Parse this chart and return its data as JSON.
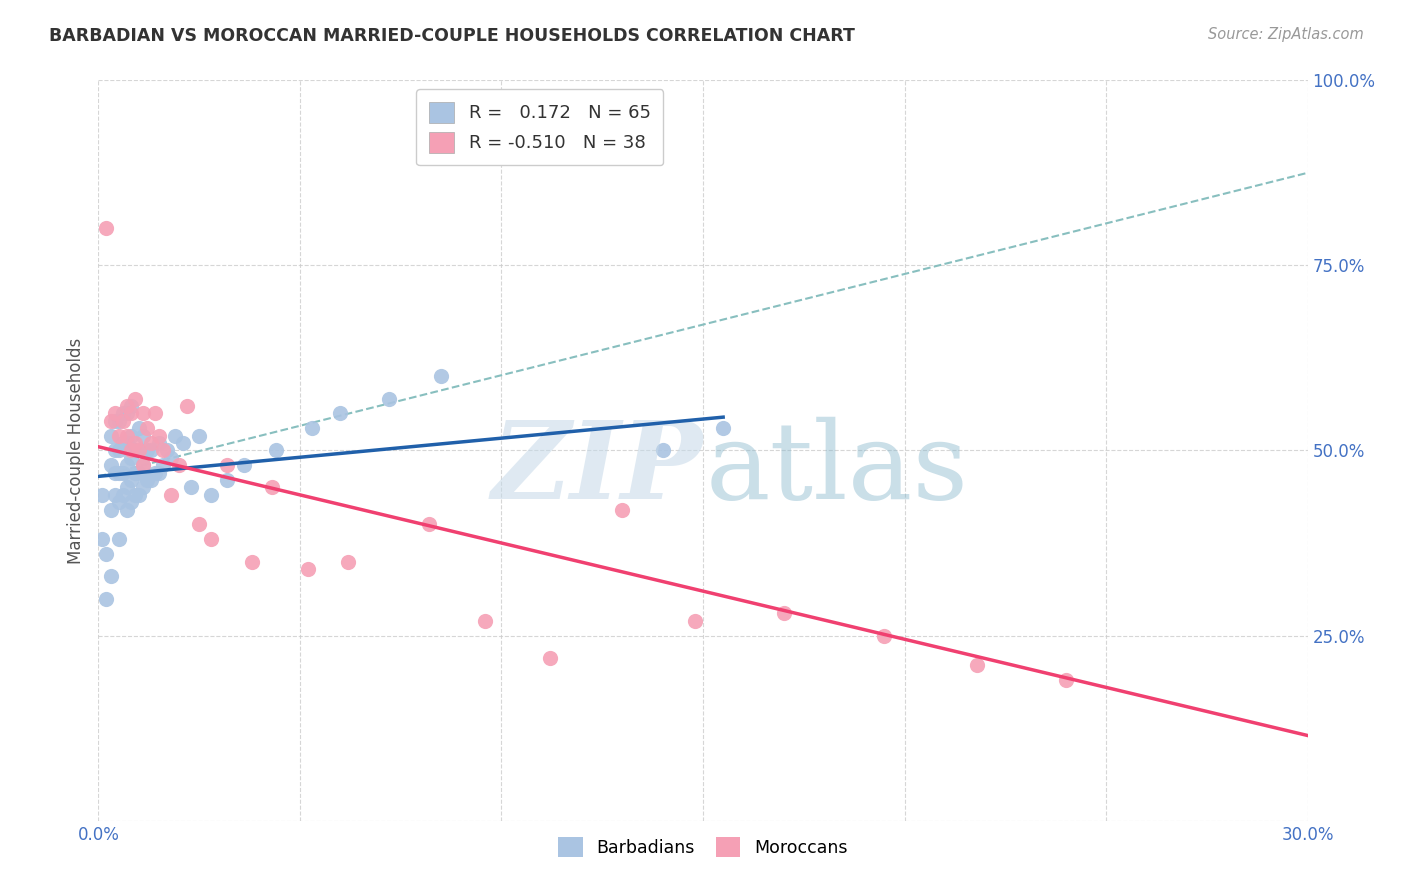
{
  "title": "BARBADIAN VS MOROCCAN MARRIED-COUPLE HOUSEHOLDS CORRELATION CHART",
  "source": "Source: ZipAtlas.com",
  "ylabel": "Married-couple Households",
  "x_ticks": [
    0.0,
    0.05,
    0.1,
    0.15,
    0.2,
    0.25,
    0.3
  ],
  "x_tick_labels": [
    "0.0%",
    "",
    "",
    "",
    "",
    "",
    "30.0%"
  ],
  "y_ticks": [
    0.0,
    0.25,
    0.5,
    0.75,
    1.0
  ],
  "y_tick_labels": [
    "",
    "25.0%",
    "50.0%",
    "75.0%",
    "100.0%"
  ],
  "xlim": [
    0.0,
    0.3
  ],
  "ylim": [
    0.0,
    1.0
  ],
  "barbadian_color": "#aac4e2",
  "moroccan_color": "#f5a0b5",
  "barbadian_line_color": "#2060aa",
  "moroccan_line_color": "#f04070",
  "dashed_line_color": "#88bfbf",
  "R_barbadian": 0.172,
  "N_barbadian": 65,
  "R_moroccan": -0.51,
  "N_moroccan": 38,
  "barbadian_x": [
    0.001,
    0.001,
    0.002,
    0.002,
    0.003,
    0.003,
    0.003,
    0.003,
    0.004,
    0.004,
    0.004,
    0.004,
    0.005,
    0.005,
    0.005,
    0.005,
    0.005,
    0.006,
    0.006,
    0.006,
    0.006,
    0.007,
    0.007,
    0.007,
    0.007,
    0.007,
    0.008,
    0.008,
    0.008,
    0.008,
    0.008,
    0.009,
    0.009,
    0.009,
    0.01,
    0.01,
    0.01,
    0.01,
    0.011,
    0.011,
    0.011,
    0.012,
    0.012,
    0.013,
    0.013,
    0.014,
    0.015,
    0.015,
    0.016,
    0.017,
    0.018,
    0.019,
    0.021,
    0.023,
    0.025,
    0.028,
    0.032,
    0.036,
    0.044,
    0.053,
    0.06,
    0.072,
    0.085,
    0.14,
    0.155
  ],
  "barbadian_y": [
    0.44,
    0.38,
    0.3,
    0.36,
    0.33,
    0.42,
    0.48,
    0.52,
    0.44,
    0.47,
    0.5,
    0.54,
    0.38,
    0.43,
    0.47,
    0.5,
    0.54,
    0.44,
    0.47,
    0.51,
    0.55,
    0.42,
    0.45,
    0.48,
    0.51,
    0.55,
    0.43,
    0.46,
    0.49,
    0.52,
    0.56,
    0.44,
    0.47,
    0.5,
    0.44,
    0.47,
    0.5,
    0.53,
    0.45,
    0.48,
    0.52,
    0.46,
    0.5,
    0.46,
    0.5,
    0.47,
    0.47,
    0.51,
    0.48,
    0.5,
    0.49,
    0.52,
    0.51,
    0.45,
    0.52,
    0.44,
    0.46,
    0.48,
    0.5,
    0.53,
    0.55,
    0.57,
    0.6,
    0.5,
    0.53
  ],
  "moroccan_x": [
    0.002,
    0.003,
    0.004,
    0.005,
    0.006,
    0.007,
    0.007,
    0.008,
    0.008,
    0.009,
    0.009,
    0.01,
    0.011,
    0.011,
    0.012,
    0.013,
    0.014,
    0.015,
    0.016,
    0.018,
    0.02,
    0.022,
    0.025,
    0.028,
    0.032,
    0.038,
    0.043,
    0.052,
    0.062,
    0.082,
    0.096,
    0.112,
    0.13,
    0.148,
    0.17,
    0.195,
    0.218,
    0.24
  ],
  "moroccan_y": [
    0.8,
    0.54,
    0.55,
    0.52,
    0.54,
    0.52,
    0.56,
    0.5,
    0.55,
    0.51,
    0.57,
    0.5,
    0.55,
    0.48,
    0.53,
    0.51,
    0.55,
    0.52,
    0.5,
    0.44,
    0.48,
    0.56,
    0.4,
    0.38,
    0.48,
    0.35,
    0.45,
    0.34,
    0.35,
    0.4,
    0.27,
    0.22,
    0.42,
    0.27,
    0.28,
    0.25,
    0.21,
    0.19
  ],
  "barbadian_line_x0": 0.0,
  "barbadian_line_x1": 0.155,
  "barbadian_line_y0": 0.465,
  "barbadian_line_y1": 0.545,
  "moroccan_line_x0": 0.0,
  "moroccan_line_x1": 0.3,
  "moroccan_line_y0": 0.505,
  "moroccan_line_y1": 0.115,
  "dashed_line_x0": 0.0,
  "dashed_line_x1": 0.3,
  "dashed_line_y0": 0.465,
  "dashed_line_y1": 0.875,
  "legend_barbadian_label": "R =   0.172   N = 65",
  "legend_moroccan_label": "R = -0.510   N = 38",
  "bottom_legend_barbadian": "Barbadians",
  "bottom_legend_moroccan": "Moroccans",
  "watermark_zip": "ZIP",
  "watermark_atlas": "atlas",
  "background_color": "#ffffff",
  "grid_color": "#cccccc",
  "title_color": "#333333",
  "source_color": "#999999",
  "tick_color": "#4472c4"
}
